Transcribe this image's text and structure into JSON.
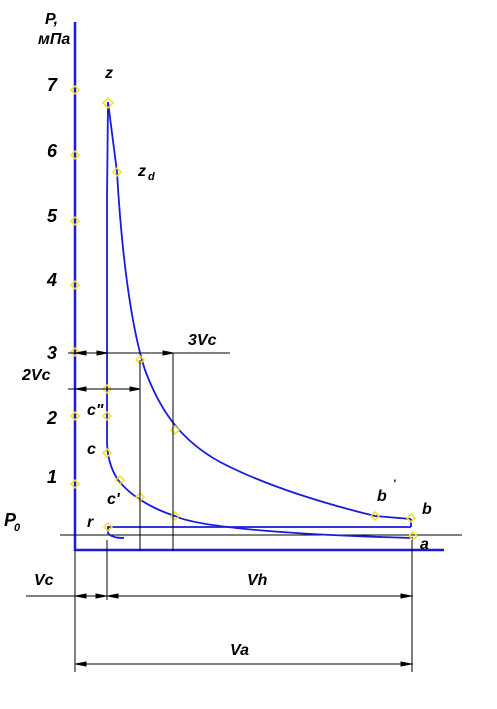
{
  "axis": {
    "y_title_line1": "P,",
    "y_title_line2": "мПа",
    "p0": "P",
    "p0_sub": "0"
  },
  "y_ticks": [
    "7",
    "6",
    "5",
    "4",
    "3",
    "2",
    "1"
  ],
  "point_labels": {
    "z": "z",
    "zd": "z",
    "zd_sub": "d",
    "c2": "c\"",
    "c": "c",
    "c1": "c'",
    "r": "r",
    "b1": "b",
    "b1_mark": "'",
    "b": "b",
    "a": "a"
  },
  "dimensions": {
    "v3c": "3Vc",
    "v2c": "2Vc",
    "vc": "Vc",
    "vh": "Vh",
    "va": "Va"
  },
  "colors": {
    "curve": "#1a1adc",
    "axis": "#1a1adc",
    "marker": "#f0e020",
    "line": "#000000"
  }
}
